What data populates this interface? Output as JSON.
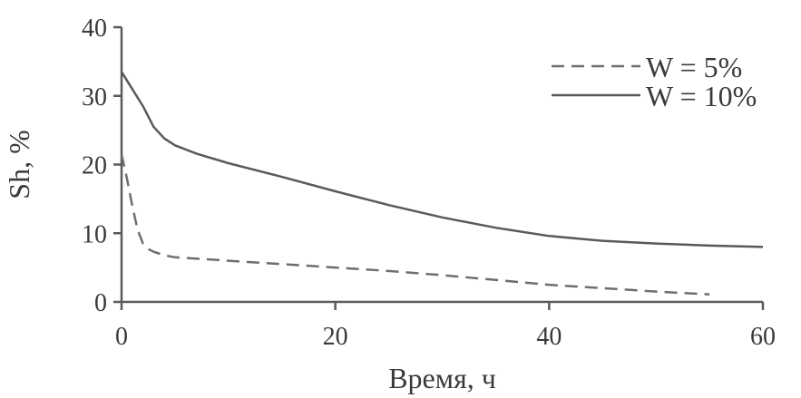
{
  "chart_data": {
    "type": "line",
    "xlabel": "Время, ч",
    "ylabel": "Sh, %",
    "xlim": [
      0,
      60
    ],
    "ylim": [
      0,
      40
    ],
    "xticks": [
      0,
      20,
      40,
      60
    ],
    "yticks": [
      0,
      10,
      20,
      30,
      40
    ],
    "grid": false,
    "legend_position": "top-right",
    "series": [
      {
        "name": "W = 5%",
        "line_style": "dashed",
        "color": "#6e6e6e",
        "points": [
          [
            0,
            21.5
          ],
          [
            0.5,
            18
          ],
          [
            1,
            14
          ],
          [
            1.5,
            10.5
          ],
          [
            2,
            8.5
          ],
          [
            2.5,
            7.7
          ],
          [
            3,
            7.3
          ],
          [
            4,
            6.8
          ],
          [
            5,
            6.5
          ],
          [
            8,
            6.2
          ],
          [
            10,
            6.0
          ],
          [
            15,
            5.5
          ],
          [
            20,
            5.0
          ],
          [
            25,
            4.5
          ],
          [
            30,
            3.9
          ],
          [
            35,
            3.2
          ],
          [
            40,
            2.5
          ],
          [
            45,
            2.0
          ],
          [
            50,
            1.5
          ],
          [
            55,
            1.1
          ]
        ]
      },
      {
        "name": "W = 10%",
        "line_style": "solid",
        "color": "#5a5a5a",
        "points": [
          [
            0,
            33.5
          ],
          [
            1,
            31
          ],
          [
            2,
            28.5
          ],
          [
            3,
            25.5
          ],
          [
            4,
            23.8
          ],
          [
            5,
            22.8
          ],
          [
            7,
            21.6
          ],
          [
            10,
            20.2
          ],
          [
            15,
            18.2
          ],
          [
            20,
            16.1
          ],
          [
            25,
            14.1
          ],
          [
            30,
            12.3
          ],
          [
            35,
            10.8
          ],
          [
            40,
            9.6
          ],
          [
            45,
            8.9
          ],
          [
            50,
            8.5
          ],
          [
            55,
            8.2
          ],
          [
            60,
            8.0
          ]
        ]
      }
    ]
  }
}
